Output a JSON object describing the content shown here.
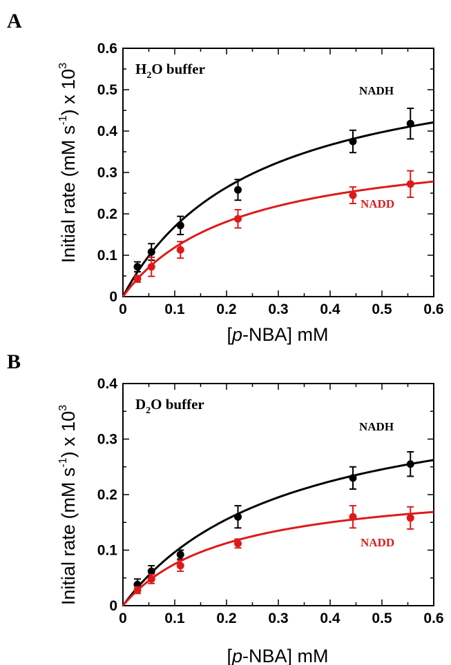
{
  "chart_data": [
    {
      "type": "scatter",
      "panel_label": "A",
      "annotation": {
        "main": "H",
        "sub": "2",
        "rest": "O buffer"
      },
      "xlabel": {
        "pre": "[",
        "italic": "p",
        "post": "-NBA] mM"
      },
      "ylabel": {
        "pre": "Initial rate (mM s",
        "sup1": "-1",
        "mid": ") x 10",
        "sup2": "3"
      },
      "xlim": [
        0,
        0.6
      ],
      "ylim": [
        0,
        0.6
      ],
      "xticks": [
        0,
        0.1,
        0.2,
        0.3,
        0.4,
        0.5,
        0.6
      ],
      "xtick_labels": [
        "0",
        "0.1",
        "0.2",
        "0.3",
        "0.4",
        "0.5",
        "0.6"
      ],
      "yticks": [
        0,
        0.1,
        0.2,
        0.3,
        0.4,
        0.5,
        0.6
      ],
      "ytick_labels": [
        "0",
        "0.1",
        "0.2",
        "0.3",
        "0.4",
        "0.5",
        "0.6"
      ],
      "grid": false,
      "series": [
        {
          "name": "NADH",
          "color": "#000000",
          "x": [
            0.028,
            0.055,
            0.111,
            0.222,
            0.444,
            0.555
          ],
          "y": [
            0.072,
            0.108,
            0.172,
            0.258,
            0.375,
            0.418
          ],
          "err": [
            0.012,
            0.02,
            0.022,
            0.025,
            0.027,
            0.037
          ],
          "fit": {
            "vmax": 0.6,
            "km": 0.255
          }
        },
        {
          "name": "NADD",
          "color": "#dd1a1a",
          "x": [
            0.028,
            0.055,
            0.111,
            0.222,
            0.444,
            0.555
          ],
          "y": [
            0.043,
            0.072,
            0.113,
            0.188,
            0.245,
            0.272
          ],
          "err": [
            0.008,
            0.023,
            0.02,
            0.022,
            0.02,
            0.032
          ],
          "fit": {
            "vmax": 0.38,
            "km": 0.22
          }
        }
      ]
    },
    {
      "type": "scatter",
      "panel_label": "B",
      "annotation": {
        "main": "D",
        "sub": "2",
        "rest": "O buffer"
      },
      "xlabel": {
        "pre": "[",
        "italic": "p",
        "post": "-NBA] mM"
      },
      "ylabel": {
        "pre": "Initial rate (mM s",
        "sup1": "-1",
        "mid": ") x 10",
        "sup2": "3"
      },
      "xlim": [
        0,
        0.6
      ],
      "ylim": [
        0,
        0.4
      ],
      "xticks": [
        0,
        0.1,
        0.2,
        0.3,
        0.4,
        0.5,
        0.6
      ],
      "xtick_labels": [
        "0",
        "0.1",
        "0.2",
        "0.3",
        "0.4",
        "0.5",
        "0.6"
      ],
      "yticks": [
        0,
        0.1,
        0.2,
        0.3,
        0.4
      ],
      "ytick_labels": [
        "0",
        "0.1",
        "0.2",
        "0.3",
        "0.4"
      ],
      "grid": false,
      "series": [
        {
          "name": "NADH",
          "color": "#000000",
          "x": [
            0.028,
            0.055,
            0.111,
            0.222,
            0.444,
            0.555
          ],
          "y": [
            0.038,
            0.062,
            0.092,
            0.16,
            0.23,
            0.255
          ],
          "err": [
            0.01,
            0.01,
            0.008,
            0.02,
            0.02,
            0.022
          ],
          "fit": {
            "vmax": 0.4,
            "km": 0.315
          }
        },
        {
          "name": "NADD",
          "color": "#dd1a1a",
          "x": [
            0.028,
            0.055,
            0.111,
            0.222,
            0.444,
            0.555
          ],
          "y": [
            0.028,
            0.048,
            0.072,
            0.112,
            0.16,
            0.158
          ],
          "err": [
            0.006,
            0.008,
            0.01,
            0.008,
            0.02,
            0.02
          ],
          "fit": {
            "vmax": 0.225,
            "km": 0.2
          }
        }
      ]
    }
  ]
}
